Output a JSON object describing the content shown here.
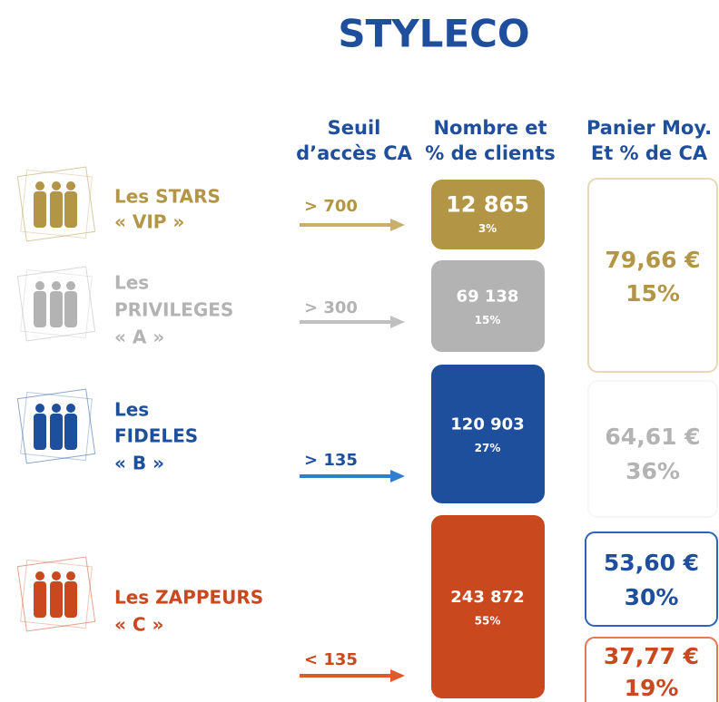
{
  "title": "STYLECO",
  "headers": [
    [
      "Seuil",
      "d’accès CA"
    ],
    [
      "Nombre et",
      "% de clients"
    ],
    [
      "Panier Moy.",
      "Et % de CA"
    ]
  ],
  "segments": [
    {
      "label": [
        "Les STARS",
        "« VIP »"
      ],
      "threshold": "> 700",
      "count": "12 865",
      "share": "3%",
      "color": "#b39546",
      "arrow": "#c9ae6c"
    },
    {
      "label": [
        "Les",
        "PRIVILEGES",
        "« A »"
      ],
      "threshold": "> 300",
      "count": "69 138",
      "share": "15%",
      "color": "#b3b3b3",
      "arrow": "#c0c0c0"
    },
    {
      "label": [
        "Les",
        "FIDELES",
        "« B »"
      ],
      "threshold": "> 135",
      "count": "120 903",
      "share": "27%",
      "color": "#1e4f9c",
      "arrow": "#2e7fd0"
    },
    {
      "label": [
        "Les ZAPPEURS",
        "« C »"
      ],
      "threshold": "< 135",
      "count": "243 872",
      "share": "55%",
      "color": "#c9481e",
      "arrow": "#e0592a"
    }
  ],
  "baskets": [
    {
      "amount": "79,66 €",
      "share": "15%",
      "color": "#b39546",
      "border": "#e6d9b8"
    },
    {
      "amount": "64,61 €",
      "share": "36%",
      "color": "#b3b3b3",
      "border": "#f6f6f6"
    },
    {
      "amount": "53,60 €",
      "share": "30%",
      "color": "#1e4f9c",
      "border": "#2d63b8"
    },
    {
      "amount": "37,77 €",
      "share": "19%",
      "color": "#c9481e",
      "border": "#e07a55"
    }
  ]
}
